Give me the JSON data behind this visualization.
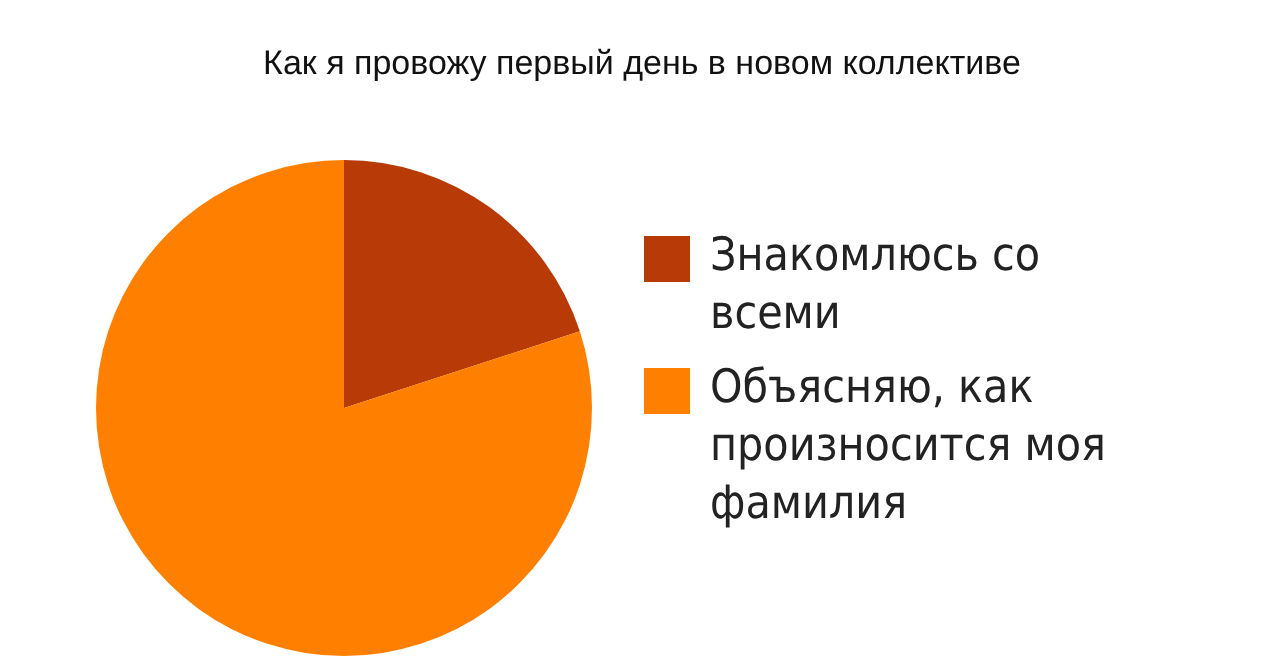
{
  "chart_data": {
    "type": "pie",
    "title": "Как я провожу первый день в новом коллективе",
    "categories": [
      "Знакомлюсь со всеми",
      "Объясняю, как произносится моя фамилия"
    ],
    "values": [
      20,
      80
    ],
    "colors": [
      "#b83a06",
      "#ff8000"
    ],
    "legend": "right"
  }
}
